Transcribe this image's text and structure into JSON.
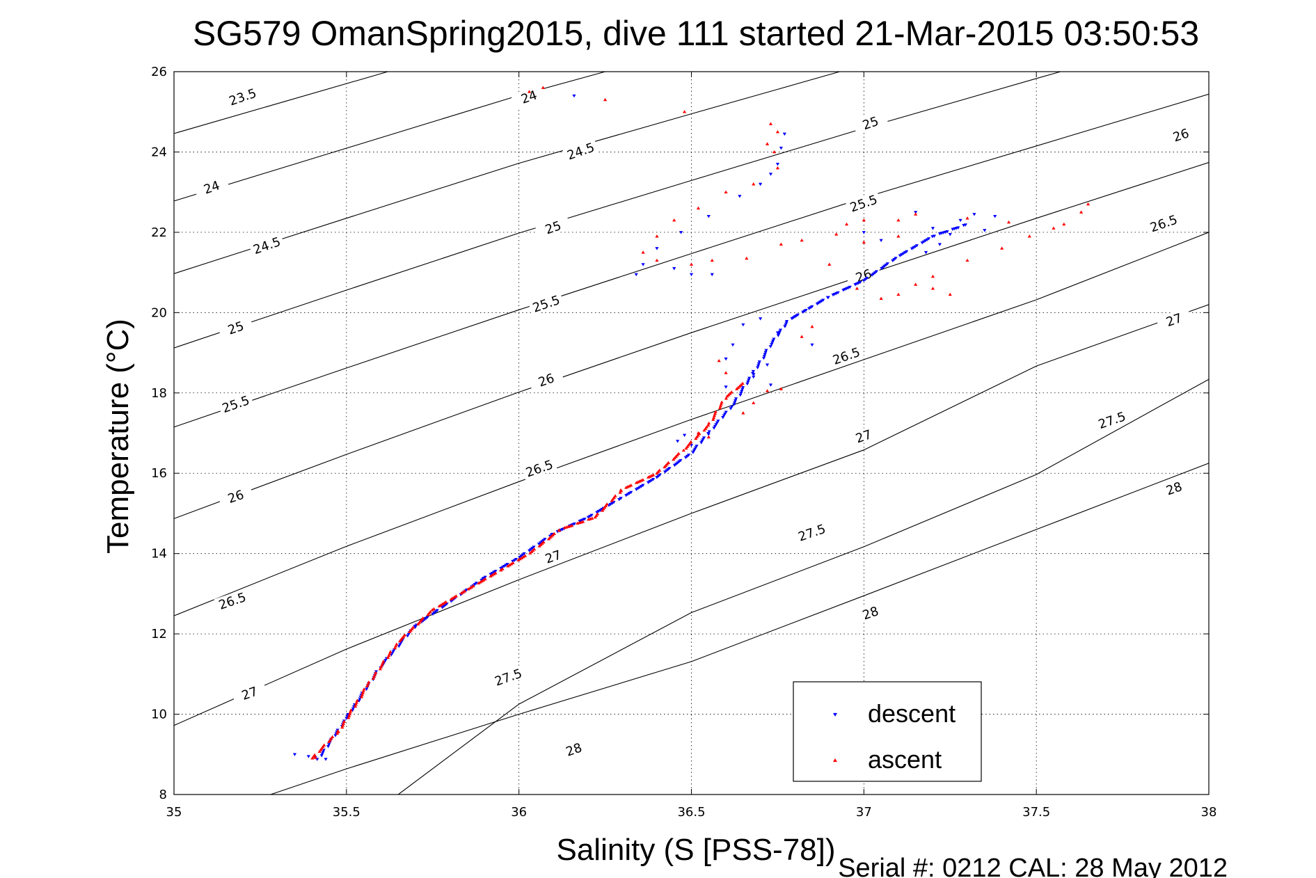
{
  "chart_data": {
    "type": "scatter",
    "title": "SG579 OmanSpring2015, dive 111 started 21-Mar-2015 03:50:53",
    "xlabel": "Salinity (S [PSS-78])",
    "ylabel": "Temperature (°C)",
    "xlim": [
      35,
      38
    ],
    "ylim": [
      8,
      26
    ],
    "xticks": [
      35,
      35.5,
      36,
      36.5,
      37,
      37.5,
      38
    ],
    "yticks": [
      8,
      10,
      12,
      14,
      16,
      18,
      20,
      22,
      24,
      26
    ],
    "grid": true,
    "legend_position": "bottom-right",
    "footer": "Serial #: 0212  CAL: 28 May 2012",
    "colors": {
      "descent": "#0000ff",
      "ascent": "#ff0000"
    },
    "density_contours": [
      {
        "sigma": 23.5,
        "points": [
          [
            35.0,
            24.46
          ],
          [
            35.62,
            26.0
          ]
        ]
      },
      {
        "sigma": 24,
        "points": [
          [
            35.0,
            22.78
          ],
          [
            36.0,
            25.41
          ],
          [
            36.25,
            26.0
          ]
        ]
      },
      {
        "sigma": 24.5,
        "points": [
          [
            35.0,
            20.97
          ],
          [
            35.5,
            22.35
          ],
          [
            36.0,
            23.72
          ],
          [
            36.5,
            24.95
          ],
          [
            36.75,
            25.56
          ],
          [
            36.93,
            26.0
          ]
        ]
      },
      {
        "sigma": 25,
        "points": [
          [
            35.0,
            19.12
          ],
          [
            35.5,
            20.56
          ],
          [
            36.0,
            21.98
          ],
          [
            36.5,
            23.29
          ],
          [
            37.0,
            24.59
          ],
          [
            37.5,
            25.83
          ],
          [
            37.57,
            26.0
          ]
        ]
      },
      {
        "sigma": 25.5,
        "points": [
          [
            35.0,
            17.15
          ],
          [
            35.5,
            18.62
          ],
          [
            36.0,
            20.07
          ],
          [
            36.5,
            21.47
          ],
          [
            37.0,
            22.86
          ],
          [
            37.5,
            24.15
          ],
          [
            38.0,
            25.44
          ]
        ]
      },
      {
        "sigma": 26,
        "points": [
          [
            35.0,
            14.87
          ],
          [
            35.5,
            16.47
          ],
          [
            36.0,
            18.02
          ],
          [
            36.5,
            19.5
          ],
          [
            37.0,
            20.93
          ],
          [
            37.5,
            22.35
          ],
          [
            38.0,
            23.74
          ]
        ]
      },
      {
        "sigma": 26.5,
        "points": [
          [
            35.0,
            12.45
          ],
          [
            35.5,
            14.18
          ],
          [
            36.0,
            15.79
          ],
          [
            36.5,
            17.34
          ],
          [
            37.0,
            18.83
          ],
          [
            37.5,
            20.32
          ],
          [
            38.0,
            22.0
          ]
        ]
      },
      {
        "sigma": 27,
        "points": [
          [
            35.0,
            9.72
          ],
          [
            35.5,
            11.62
          ],
          [
            36.0,
            13.35
          ],
          [
            36.5,
            15.0
          ],
          [
            37.0,
            16.58
          ],
          [
            37.5,
            18.67
          ],
          [
            38.0,
            20.2
          ]
        ]
      },
      {
        "sigma": 27.5,
        "points": [
          [
            35.65,
            8.0
          ],
          [
            36.0,
            10.25
          ],
          [
            36.5,
            12.53
          ],
          [
            37.0,
            14.17
          ],
          [
            37.5,
            15.97
          ],
          [
            38.0,
            18.34
          ]
        ]
      },
      {
        "sigma": 28,
        "points": [
          [
            35.28,
            8.0
          ],
          [
            35.5,
            8.64
          ],
          [
            36.0,
            10.0
          ],
          [
            36.5,
            11.31
          ],
          [
            37.0,
            12.95
          ],
          [
            37.5,
            14.6
          ],
          [
            38.0,
            16.25
          ]
        ]
      }
    ],
    "contour_labels": [
      {
        "text": "23.5",
        "s": 35.2,
        "t": 25.35,
        "angle": -19
      },
      {
        "text": "24",
        "s": 35.11,
        "t": 23.1,
        "angle": -19
      },
      {
        "text": "24.5",
        "s": 35.27,
        "t": 21.65,
        "angle": -19
      },
      {
        "text": "25",
        "s": 35.18,
        "t": 19.6,
        "angle": -19
      },
      {
        "text": "25.5",
        "s": 35.18,
        "t": 17.7,
        "angle": -19
      },
      {
        "text": "26",
        "s": 35.18,
        "t": 15.4,
        "angle": -19
      },
      {
        "text": "26.5",
        "s": 35.17,
        "t": 12.8,
        "angle": -19
      },
      {
        "text": "27",
        "s": 35.22,
        "t": 10.5,
        "angle": -19
      },
      {
        "text": "24",
        "s": 36.03,
        "t": 25.35,
        "angle": -19
      },
      {
        "text": "24.5",
        "s": 36.18,
        "t": 24.0,
        "angle": -19
      },
      {
        "text": "25",
        "s": 36.1,
        "t": 22.1,
        "angle": -19
      },
      {
        "text": "25.5",
        "s": 36.08,
        "t": 20.2,
        "angle": -19
      },
      {
        "text": "26",
        "s": 36.08,
        "t": 18.3,
        "angle": -19
      },
      {
        "text": "26.5",
        "s": 36.06,
        "t": 16.1,
        "angle": -19
      },
      {
        "text": "27",
        "s": 36.1,
        "t": 13.9,
        "angle": -19
      },
      {
        "text": "27.5",
        "s": 35.97,
        "t": 10.9,
        "angle": -19
      },
      {
        "text": "28",
        "s": 36.16,
        "t": 9.1,
        "angle": -19
      },
      {
        "text": "25",
        "s": 37.02,
        "t": 24.7,
        "angle": -19
      },
      {
        "text": "25.5",
        "s": 37.0,
        "t": 22.7,
        "angle": -19
      },
      {
        "text": "26",
        "s": 37.0,
        "t": 20.9,
        "angle": -19
      },
      {
        "text": "26.5",
        "s": 36.95,
        "t": 18.9,
        "angle": -19
      },
      {
        "text": "27",
        "s": 37.0,
        "t": 16.9,
        "angle": -19
      },
      {
        "text": "27.5",
        "s": 36.85,
        "t": 14.5,
        "angle": -19
      },
      {
        "text": "28",
        "s": 37.02,
        "t": 12.5,
        "angle": -19
      },
      {
        "text": "26",
        "s": 37.92,
        "t": 24.4,
        "angle": -19
      },
      {
        "text": "26.5",
        "s": 37.87,
        "t": 22.2,
        "angle": -19
      },
      {
        "text": "27",
        "s": 37.9,
        "t": 19.8,
        "angle": -19
      },
      {
        "text": "27.5",
        "s": 37.72,
        "t": 17.3,
        "angle": -19
      },
      {
        "text": "28",
        "s": 37.9,
        "t": 15.6,
        "angle": -19
      }
    ],
    "series": [
      {
        "name": "descent",
        "marker": "triangle-down",
        "trace": [
          [
            35.42,
            8.9
          ],
          [
            35.5,
            9.9
          ],
          [
            35.6,
            11.2
          ],
          [
            35.7,
            12.2
          ],
          [
            35.8,
            12.8
          ],
          [
            35.9,
            13.4
          ],
          [
            36.0,
            13.9
          ],
          [
            36.1,
            14.5
          ],
          [
            36.2,
            14.9
          ],
          [
            36.3,
            15.4
          ],
          [
            36.4,
            15.9
          ],
          [
            36.5,
            16.5
          ],
          [
            36.55,
            17.0
          ],
          [
            36.62,
            17.7
          ],
          [
            36.68,
            18.5
          ],
          [
            36.73,
            19.2
          ],
          [
            36.78,
            19.8
          ],
          [
            36.84,
            20.1
          ],
          [
            36.9,
            20.4
          ],
          [
            37.0,
            20.8
          ],
          [
            37.1,
            21.4
          ],
          [
            37.2,
            21.9
          ],
          [
            37.3,
            22.2
          ]
        ],
        "points": [
          [
            35.35,
            9.0
          ],
          [
            35.41,
            8.92
          ],
          [
            35.44,
            8.88
          ],
          [
            35.39,
            8.95
          ],
          [
            36.34,
            20.95
          ],
          [
            36.36,
            21.2
          ],
          [
            36.4,
            21.6
          ],
          [
            36.47,
            22.0
          ],
          [
            36.55,
            22.4
          ],
          [
            36.64,
            22.9
          ],
          [
            36.7,
            23.2
          ],
          [
            36.73,
            23.45
          ],
          [
            36.75,
            23.7
          ],
          [
            36.76,
            24.1
          ],
          [
            36.77,
            24.45
          ],
          [
            36.16,
            25.4
          ],
          [
            36.45,
            21.1
          ],
          [
            36.5,
            20.95
          ],
          [
            36.56,
            20.95
          ],
          [
            37.0,
            22.0
          ],
          [
            37.05,
            21.8
          ],
          [
            37.15,
            22.5
          ],
          [
            37.2,
            22.1
          ],
          [
            37.25,
            21.95
          ],
          [
            37.28,
            22.3
          ],
          [
            37.32,
            22.45
          ],
          [
            37.35,
            22.05
          ],
          [
            37.38,
            22.4
          ],
          [
            37.18,
            21.5
          ],
          [
            37.22,
            21.7
          ],
          [
            36.75,
            19.5
          ],
          [
            36.73,
            18.2
          ],
          [
            36.68,
            18.4
          ],
          [
            36.7,
            19.85
          ],
          [
            36.65,
            19.7
          ],
          [
            36.62,
            19.2
          ],
          [
            36.6,
            18.85
          ],
          [
            36.72,
            18.7
          ],
          [
            36.85,
            19.2
          ],
          [
            36.6,
            18.15
          ],
          [
            36.5,
            16.7
          ],
          [
            36.48,
            16.95
          ],
          [
            36.46,
            16.8
          ]
        ]
      },
      {
        "name": "ascent",
        "marker": "triangle-up",
        "trace": [
          [
            35.4,
            8.9
          ],
          [
            35.48,
            9.6
          ],
          [
            35.56,
            10.7
          ],
          [
            35.65,
            11.8
          ],
          [
            35.75,
            12.6
          ],
          [
            35.85,
            13.1
          ],
          [
            35.95,
            13.6
          ],
          [
            36.03,
            14.0
          ],
          [
            36.12,
            14.6
          ],
          [
            36.22,
            14.9
          ],
          [
            36.3,
            15.6
          ],
          [
            36.4,
            16.0
          ],
          [
            36.48,
            16.6
          ],
          [
            36.55,
            17.2
          ],
          [
            36.6,
            17.9
          ],
          [
            36.66,
            18.3
          ]
        ],
        "points": [
          [
            35.41,
            8.92
          ],
          [
            36.03,
            25.5
          ],
          [
            36.07,
            25.6
          ],
          [
            36.25,
            25.3
          ],
          [
            36.48,
            25.0
          ],
          [
            36.73,
            24.7
          ],
          [
            36.75,
            24.5
          ],
          [
            36.72,
            24.2
          ],
          [
            36.74,
            24.0
          ],
          [
            36.75,
            23.6
          ],
          [
            36.68,
            23.2
          ],
          [
            36.6,
            23.0
          ],
          [
            36.52,
            22.6
          ],
          [
            36.45,
            22.3
          ],
          [
            36.4,
            21.9
          ],
          [
            36.36,
            21.5
          ],
          [
            36.4,
            21.3
          ],
          [
            36.5,
            21.2
          ],
          [
            36.56,
            21.3
          ],
          [
            36.66,
            21.35
          ],
          [
            36.76,
            21.7
          ],
          [
            36.82,
            21.8
          ],
          [
            36.92,
            21.95
          ],
          [
            36.95,
            22.2
          ],
          [
            37.0,
            22.3
          ],
          [
            37.1,
            22.3
          ],
          [
            37.15,
            22.45
          ],
          [
            37.1,
            21.9
          ],
          [
            37.0,
            21.75
          ],
          [
            37.3,
            22.35
          ],
          [
            37.42,
            22.25
          ],
          [
            37.55,
            22.1
          ],
          [
            37.63,
            22.5
          ],
          [
            37.65,
            22.7
          ],
          [
            37.58,
            22.2
          ],
          [
            37.48,
            21.9
          ],
          [
            37.4,
            21.6
          ],
          [
            37.3,
            21.3
          ],
          [
            37.2,
            20.9
          ],
          [
            37.15,
            20.7
          ],
          [
            37.1,
            20.45
          ],
          [
            37.05,
            20.35
          ],
          [
            37.2,
            20.6
          ],
          [
            37.25,
            20.45
          ],
          [
            36.85,
            19.65
          ],
          [
            36.82,
            19.4
          ],
          [
            36.72,
            18.05
          ],
          [
            36.76,
            18.1
          ],
          [
            36.68,
            17.75
          ],
          [
            36.65,
            17.5
          ],
          [
            36.6,
            18.5
          ],
          [
            36.58,
            18.8
          ],
          [
            36.55,
            16.9
          ],
          [
            36.52,
            17.0
          ],
          [
            36.9,
            21.2
          ],
          [
            36.98,
            20.6
          ]
        ]
      }
    ]
  }
}
